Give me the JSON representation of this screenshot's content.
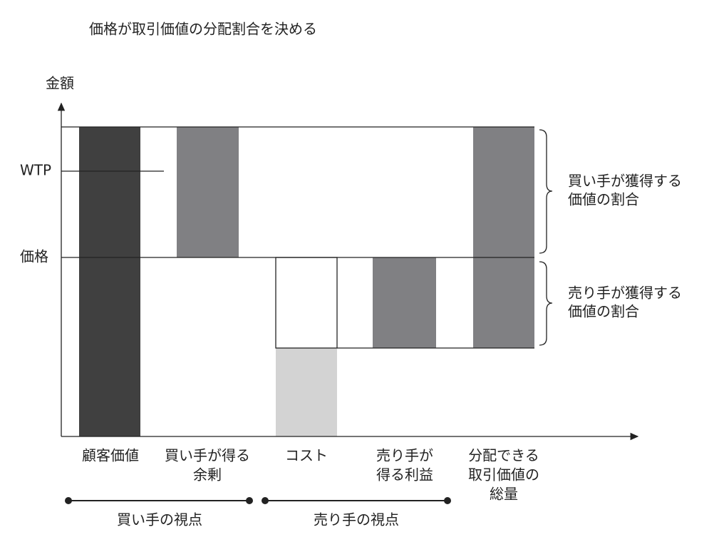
{
  "title": "価格が取引価値の分配割合を決める",
  "y_axis_label": "金額",
  "levels": [
    "WTP",
    "価格"
  ],
  "categories": [
    {
      "lines": [
        "顧客価値"
      ]
    },
    {
      "lines": [
        "買い手が得る",
        "余剰"
      ]
    },
    {
      "lines": [
        "コスト"
      ]
    },
    {
      "lines": [
        "売り手が",
        "得る利益"
      ]
    },
    {
      "lines": [
        "分配できる",
        "取引価値の",
        "総量"
      ]
    }
  ],
  "braces": [
    {
      "lines": [
        "買い手が獲得する",
        "価値の割合"
      ]
    },
    {
      "lines": [
        "売り手が獲得する",
        "価値の割合"
      ]
    }
  ],
  "perspectives": [
    "買い手の視点",
    "売り手の視点"
  ]
}
